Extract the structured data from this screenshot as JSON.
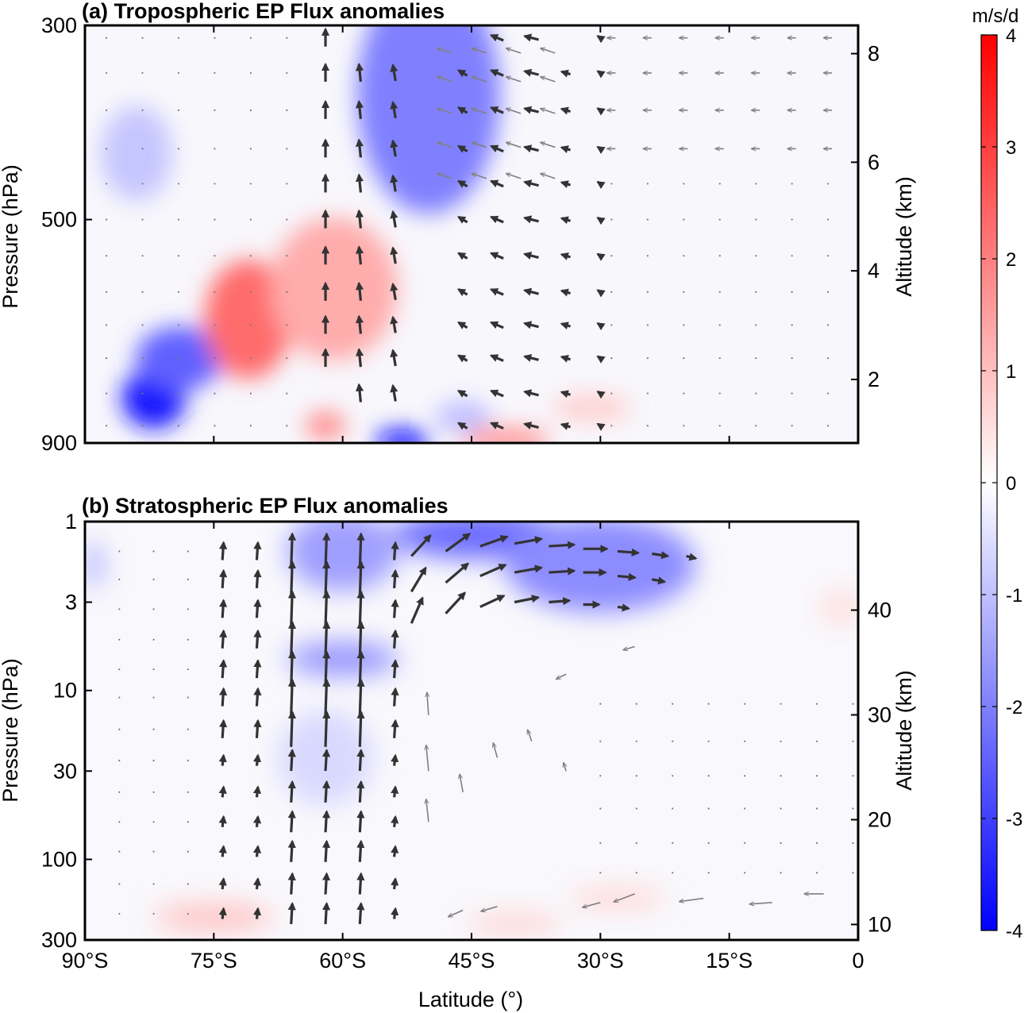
{
  "chart_data": [
    {
      "type": "heatmap",
      "title": "(a) Tropospheric EP Flux anomalies",
      "ylabel": "Pressure (hPa)",
      "y2label": "Altitude (km)",
      "y_scale": "log",
      "ylim": [
        900,
        300
      ],
      "yticks": [
        300,
        500,
        900
      ],
      "ytick_labels": [
        "300",
        "500",
        "900"
      ],
      "y2ticks": [
        2,
        4,
        6,
        8
      ],
      "y2tick_labels": [
        "2",
        "4",
        "6",
        "8"
      ],
      "xlim": [
        -90,
        0
      ],
      "xticks": [
        -90,
        -75,
        -60,
        -45,
        -30,
        -15,
        0
      ],
      "fields": {
        "anomaly_cores": [
          {
            "lat": -50,
            "p": 360,
            "value": -2.0
          },
          {
            "lat": -82,
            "p": 800,
            "value": -3.6
          },
          {
            "lat": -79,
            "p": 720,
            "value": -2.5
          },
          {
            "lat": -71,
            "p": 650,
            "value": 2.3
          },
          {
            "lat": -61,
            "p": 600,
            "value": 1.3
          },
          {
            "lat": -62,
            "p": 860,
            "value": 1.8
          },
          {
            "lat": -53,
            "p": 895,
            "value": -3.8
          },
          {
            "lat": -41,
            "p": 895,
            "value": 1.5
          },
          {
            "lat": -31,
            "p": 820,
            "value": 0.7
          },
          {
            "lat": -84,
            "p": 420,
            "value": -0.9
          },
          {
            "lat": -46,
            "p": 840,
            "value": -1.0
          }
        ],
        "arrows": [
          {
            "lat": -62,
            "p_top": 300,
            "p_bottom": 780,
            "u": 0.0,
            "v": 1.0,
            "shade": "dark"
          },
          {
            "lat": -58,
            "p_top": 330,
            "p_bottom": 800,
            "u": -0.1,
            "v": 1.0,
            "shade": "dark"
          },
          {
            "lat": -54,
            "p_top": 340,
            "p_bottom": 820,
            "u": -0.15,
            "v": 0.9,
            "shade": "dark"
          },
          {
            "lat": -46,
            "p_top": 320,
            "p_bottom": 880,
            "u": -0.5,
            "v": 0.3,
            "shade": "dark"
          },
          {
            "lat": -42,
            "p_top": 310,
            "p_bottom": 880,
            "u": -0.7,
            "v": 0.3,
            "shade": "dark"
          },
          {
            "lat": -38,
            "p_top": 310,
            "p_bottom": 880,
            "u": -0.8,
            "v": 0.2,
            "shade": "dark"
          },
          {
            "lat": -34,
            "p_top": 330,
            "p_bottom": 880,
            "u": -0.5,
            "v": 0.15,
            "shade": "dark"
          },
          {
            "lat": -30,
            "p_top": 300,
            "p_bottom": 880,
            "u": -0.3,
            "v": 0.2,
            "shade": "dark"
          }
        ]
      }
    },
    {
      "type": "heatmap",
      "title": "(b) Stratospheric EP Flux anomalies",
      "xlabel": "Latitude (°)",
      "ylabel": "Pressure (hPa)",
      "y2label": "Altitude (km)",
      "y_scale": "log",
      "ylim": [
        300,
        1
      ],
      "yticks": [
        1,
        3,
        10,
        30,
        100,
        300
      ],
      "ytick_labels": [
        "1",
        "3",
        "10",
        "30",
        "100",
        "300"
      ],
      "y2ticks": [
        10,
        20,
        30,
        40
      ],
      "y2tick_labels": [
        "10",
        "20",
        "30",
        "40"
      ],
      "xlim": [
        -90,
        0
      ],
      "xticks": [
        -90,
        -75,
        -60,
        -45,
        -30,
        -15,
        0
      ],
      "xtick_labels": [
        "90°S",
        "75°S",
        "60°S",
        "45°S",
        "30°S",
        "15°S",
        "0"
      ],
      "fields": {
        "anomaly_cores": [
          {
            "lat": -44,
            "p": 1.2,
            "value": -2.3
          },
          {
            "lat": -30,
            "p": 1.8,
            "value": -1.8
          },
          {
            "lat": -60,
            "p": 1.5,
            "value": -1.5
          },
          {
            "lat": -60,
            "p": 6.5,
            "value": -1.6
          },
          {
            "lat": -62,
            "p": 25,
            "value": -0.6
          },
          {
            "lat": -75,
            "p": 220,
            "value": 0.9
          },
          {
            "lat": -40,
            "p": 240,
            "value": 0.7
          },
          {
            "lat": -28,
            "p": 170,
            "value": 0.6
          },
          {
            "lat": -2,
            "p": 3.2,
            "value": 0.5
          },
          {
            "lat": -89,
            "p": 1.8,
            "value": -1.2
          }
        ]
      }
    }
  ],
  "colorbar": {
    "label": "m/s/d",
    "min": -4,
    "max": 4,
    "ticks": [
      -4,
      -3,
      -2,
      -1,
      0,
      1,
      2,
      3,
      4
    ],
    "tick_labels": [
      "-4",
      "-3",
      "-2",
      "-1",
      "0",
      "1",
      "2",
      "3",
      "4"
    ],
    "colors": {
      "negative": "#0000ff",
      "zero": "#ffffff",
      "positive": "#ff0000"
    }
  },
  "arrow_colors": {
    "strong": "#333333",
    "weak": "#808080"
  }
}
